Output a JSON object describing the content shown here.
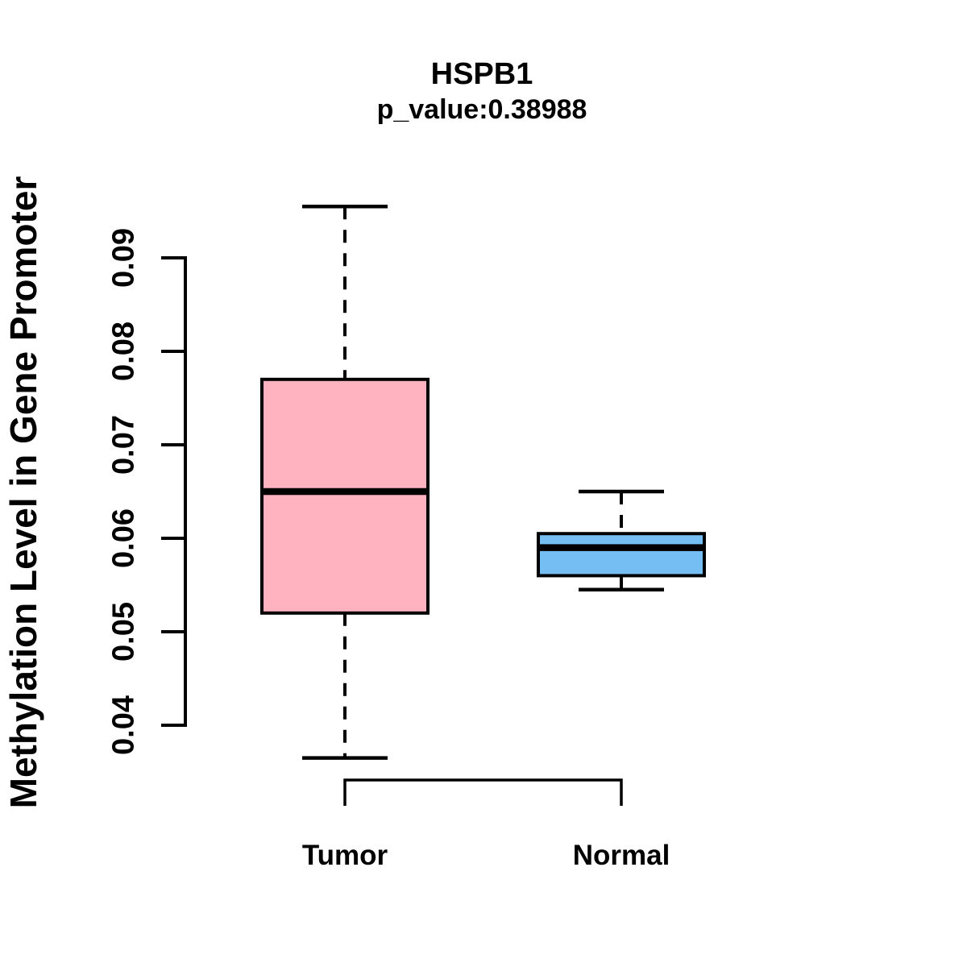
{
  "chart_data": {
    "type": "boxplot",
    "title": "HSPB1",
    "subtitle": "p_value:0.38988",
    "ylabel": "Methylation Level in Gene Promoter",
    "xlabel": "",
    "categories": [
      "Tumor",
      "Normal"
    ],
    "y_axis": {
      "ticks": [
        0.04,
        0.05,
        0.06,
        0.07,
        0.08,
        0.09
      ],
      "range_shown": [
        0.0365,
        0.0955
      ],
      "grid": false
    },
    "groups": [
      {
        "name": "Tumor",
        "color": "#FFB3C1",
        "whisker_low": 0.0365,
        "q1": 0.052,
        "median": 0.065,
        "q3": 0.077,
        "whisker_high": 0.0955
      },
      {
        "name": "Normal",
        "color": "#74BEF4",
        "whisker_low": 0.0545,
        "q1": 0.056,
        "median": 0.059,
        "q3": 0.0605,
        "whisker_high": 0.065
      }
    ],
    "style": {
      "box_border_color": "#000000",
      "median_color": "#000000",
      "whisker_style": "dashed",
      "background": "#FFFFFF"
    }
  }
}
